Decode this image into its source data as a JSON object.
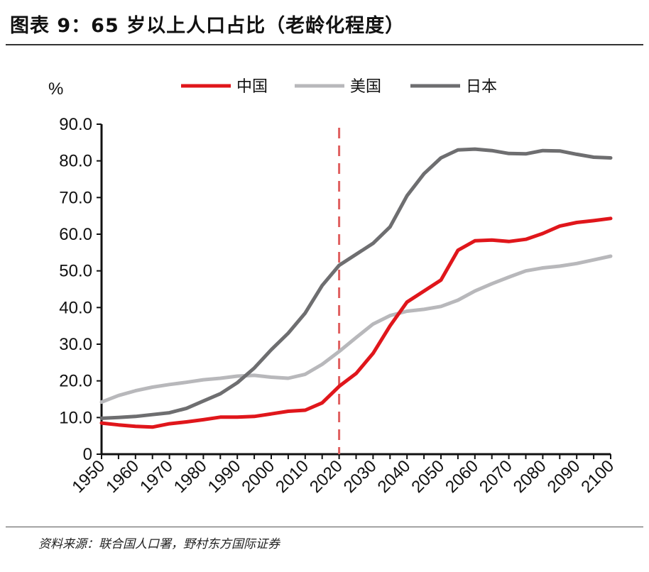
{
  "title": "图表 9：65 岁以上人口占比（老龄化程度）",
  "source": "资料来源：联合国人口署，野村东方国际证券",
  "chart_data": {
    "type": "line",
    "title": "图表 9：65 岁以上人口占比（老龄化程度）",
    "ylabel": "%",
    "xlabel": "",
    "ylim": [
      0,
      90
    ],
    "xlim": [
      1950,
      2100
    ],
    "yticks": [
      "0",
      "10.0",
      "20.0",
      "30.0",
      "40.0",
      "50.0",
      "60.0",
      "70.0",
      "80.0",
      "90.0"
    ],
    "xticks": [
      "1950",
      "1960",
      "1970",
      "1980",
      "1990",
      "2000",
      "2010",
      "2020",
      "2030",
      "2040",
      "2050",
      "2060",
      "2070",
      "2080",
      "2090",
      "2100"
    ],
    "grid": false,
    "legend_position": "top",
    "reference_line": {
      "x": 2020,
      "style": "dashed",
      "color": "#e06060"
    },
    "x": [
      1950,
      1955,
      1960,
      1965,
      1970,
      1975,
      1980,
      1985,
      1990,
      1995,
      2000,
      2005,
      2010,
      2015,
      2020,
      2025,
      2030,
      2035,
      2040,
      2045,
      2050,
      2055,
      2060,
      2065,
      2070,
      2075,
      2080,
      2085,
      2090,
      2095,
      2100
    ],
    "series": [
      {
        "name": "中国",
        "color": "#e0161b",
        "values": [
          8.5,
          8.0,
          7.6,
          7.4,
          8.3,
          8.8,
          9.4,
          10.1,
          10.1,
          10.3,
          11.0,
          11.7,
          12.0,
          14.0,
          18.5,
          22.0,
          27.5,
          35.0,
          41.5,
          44.5,
          47.5,
          55.6,
          58.2,
          58.4,
          58.0,
          58.6,
          60.2,
          62.2,
          63.2,
          63.7,
          64.3
        ]
      },
      {
        "name": "美国",
        "color": "#b8b8bb",
        "values": [
          14.2,
          16.0,
          17.3,
          18.3,
          19.0,
          19.6,
          20.3,
          20.7,
          21.3,
          21.5,
          21.0,
          20.7,
          21.8,
          24.5,
          28.0,
          31.8,
          35.5,
          37.8,
          39.0,
          39.5,
          40.3,
          42.0,
          44.5,
          46.5,
          48.3,
          50.0,
          50.8,
          51.3,
          52.0,
          53.0,
          54.0
        ]
      },
      {
        "name": "日本",
        "color": "#6e6e70",
        "values": [
          9.8,
          10.0,
          10.3,
          10.8,
          11.3,
          12.5,
          14.5,
          16.5,
          19.5,
          23.5,
          28.5,
          33.0,
          38.5,
          46.0,
          51.5,
          54.5,
          57.5,
          62.0,
          70.5,
          76.5,
          80.8,
          83.0,
          83.2,
          82.8,
          82.0,
          81.9,
          82.8,
          82.7,
          81.8,
          81.0,
          80.8
        ]
      }
    ]
  }
}
